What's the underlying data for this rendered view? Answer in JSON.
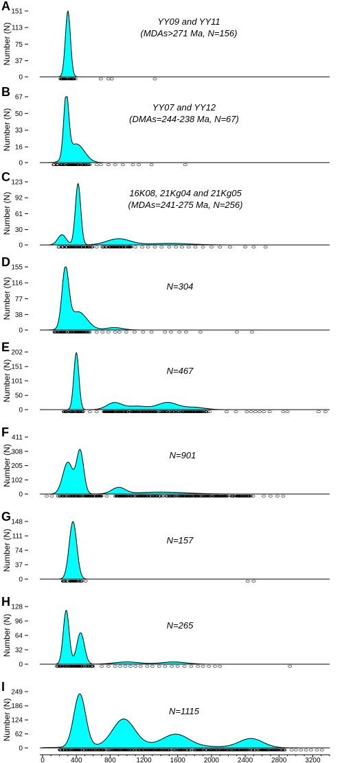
{
  "chart_data": {
    "type": "area",
    "xlim": [
      0,
      3400
    ],
    "x_ticks": [
      0,
      400,
      800,
      1200,
      1600,
      2000,
      2400,
      2800,
      3200
    ],
    "x_tick_labels": [
      "0",
      "400",
      "800",
      "1200",
      "1600",
      "2000",
      "2400",
      "2800",
      "3200"
    ],
    "ylabel": "Number (N)",
    "colors": {
      "fill": "#00ffff",
      "stroke": "#000000"
    },
    "panels": [
      {
        "letter": "A",
        "annotation": [
          "YY09 and YY11",
          "(MDAs>271 Ma, N=156)"
        ],
        "yticks": [
          0,
          37,
          75,
          113,
          151
        ],
        "ymax": 151,
        "peaks": [
          {
            "mu": 300,
            "sigma": 30,
            "h": 151
          }
        ],
        "samples": {
          "dense": [
            [
              190,
              390
            ]
          ],
          "spread": [
            690,
            780,
            820,
            1330
          ]
        }
      },
      {
        "letter": "B",
        "annotation": [
          "YY07 and YY12",
          "(DMAs=244-238 Ma, N=67)"
        ],
        "yticks": [
          0,
          16,
          33,
          50,
          67
        ],
        "ymax": 67,
        "peaks": [
          {
            "mu": 280,
            "sigma": 30,
            "h": 63
          },
          {
            "mu": 400,
            "sigma": 95,
            "h": 19
          }
        ],
        "samples": {
          "dense": [
            [
              130,
              560
            ]
          ],
          "spread": [
            640,
            690,
            780,
            860,
            950,
            1070,
            1140,
            1290,
            1690
          ]
        }
      },
      {
        "letter": "C",
        "annotation": [
          "16K08, 21Kg04 and 21Kg05",
          "(MDAs=241-275 Ma, N=256)"
        ],
        "yticks": [
          0,
          30,
          61,
          92,
          123
        ],
        "ymax": 123,
        "peaks": [
          {
            "mu": 230,
            "sigma": 50,
            "h": 20
          },
          {
            "mu": 420,
            "sigma": 32,
            "h": 120
          },
          {
            "mu": 900,
            "sigma": 140,
            "h": 12
          },
          {
            "mu": 1500,
            "sigma": 250,
            "h": 3
          }
        ],
        "samples": {
          "dense": [
            [
              190,
              590
            ],
            [
              700,
              1050
            ]
          ],
          "spread": [
            640,
            1100,
            1180,
            1250,
            1330,
            1410,
            1500,
            1580,
            1650,
            1730,
            1810,
            1900,
            2000,
            2100,
            2220,
            2400,
            2500,
            2640
          ]
        }
      },
      {
        "letter": "D",
        "annotation": [
          "N=304"
        ],
        "yticks": [
          0,
          38,
          77,
          116,
          155
        ],
        "ymax": 155,
        "peaks": [
          {
            "mu": 270,
            "sigma": 40,
            "h": 142
          },
          {
            "mu": 420,
            "sigma": 105,
            "h": 45
          },
          {
            "mu": 850,
            "sigma": 100,
            "h": 6
          }
        ],
        "samples": {
          "dense": [
            [
              130,
              560
            ]
          ],
          "spread": [
            640,
            710,
            780,
            860,
            910,
            990,
            1090,
            1190,
            1290,
            1450,
            1520,
            1620,
            1700,
            1870,
            2300,
            2480
          ]
        }
      },
      {
        "letter": "E",
        "annotation": [
          "N=467"
        ],
        "yticks": [
          0,
          50,
          101,
          151,
          202
        ],
        "ymax": 202,
        "peaks": [
          {
            "mu": 400,
            "sigma": 30,
            "h": 200
          },
          {
            "mu": 850,
            "sigma": 90,
            "h": 24
          },
          {
            "mu": 1120,
            "sigma": 120,
            "h": 12
          },
          {
            "mu": 1480,
            "sigma": 120,
            "h": 25
          },
          {
            "mu": 1800,
            "sigma": 120,
            "h": 8
          }
        ],
        "samples": {
          "dense": [
            [
              250,
              480
            ],
            [
              720,
              1980
            ]
          ],
          "spread": [
            560,
            640,
            2180,
            2290,
            2420,
            2470,
            2520,
            2570,
            2620,
            2690,
            2850,
            2900,
            3270,
            3350
          ]
        }
      },
      {
        "letter": "F",
        "annotation": [
          "N=901"
        ],
        "yticks": [
          0,
          102,
          205,
          308,
          411
        ],
        "ymax": 411,
        "peaks": [
          {
            "mu": 300,
            "sigma": 60,
            "h": 230
          },
          {
            "mu": 445,
            "sigma": 42,
            "h": 310
          },
          {
            "mu": 900,
            "sigma": 80,
            "h": 45
          },
          {
            "mu": 1400,
            "sigma": 300,
            "h": 14
          }
        ],
        "samples": {
          "dense": [
            [
              180,
              700
            ],
            [
              860,
              2500
            ]
          ],
          "spread": [
            50,
            110,
            760,
            2620,
            2700,
            2780,
            2850
          ]
        }
      },
      {
        "letter": "G",
        "annotation": [
          "N=157"
        ],
        "yticks": [
          0,
          37,
          74,
          111,
          148
        ],
        "ymax": 148,
        "peaks": [
          {
            "mu": 360,
            "sigma": 45,
            "h": 148
          }
        ],
        "samples": {
          "dense": [
            [
              240,
              470
            ]
          ],
          "spread": [
            510,
            2430,
            2500
          ]
        }
      },
      {
        "letter": "H",
        "annotation": [
          "N=265"
        ],
        "yticks": [
          0,
          32,
          64,
          96,
          128
        ],
        "ymax": 128,
        "peaks": [
          {
            "mu": 280,
            "sigma": 35,
            "h": 120
          },
          {
            "mu": 450,
            "sigma": 45,
            "h": 70
          },
          {
            "mu": 1000,
            "sigma": 150,
            "h": 5
          },
          {
            "mu": 1550,
            "sigma": 150,
            "h": 5
          }
        ],
        "samples": {
          "dense": [
            [
              170,
              620
            ]
          ],
          "spread": [
            700,
            780,
            860,
            920,
            980,
            1040,
            1100,
            1160,
            1240,
            1300,
            1380,
            1450,
            1530,
            1600,
            1680,
            1760,
            1840,
            1900,
            1970,
            2040,
            2100,
            2930
          ]
        }
      },
      {
        "letter": "I",
        "annotation": [
          "N=1115"
        ],
        "yticks": [
          0,
          62,
          124,
          186,
          249
        ],
        "ymax": 249,
        "peaks": [
          {
            "mu": 440,
            "sigma": 70,
            "h": 235
          },
          {
            "mu": 960,
            "sigma": 130,
            "h": 118
          },
          {
            "mu": 1580,
            "sigma": 150,
            "h": 50
          },
          {
            "mu": 2470,
            "sigma": 140,
            "h": 40
          },
          {
            "mu": 1300,
            "sigma": 600,
            "h": 12
          }
        ],
        "samples": {
          "dense": [
            [
              200,
              2870
            ]
          ],
          "spread": [
            2950,
            3000,
            3060,
            3120,
            3180,
            3250,
            3310
          ]
        }
      }
    ]
  }
}
